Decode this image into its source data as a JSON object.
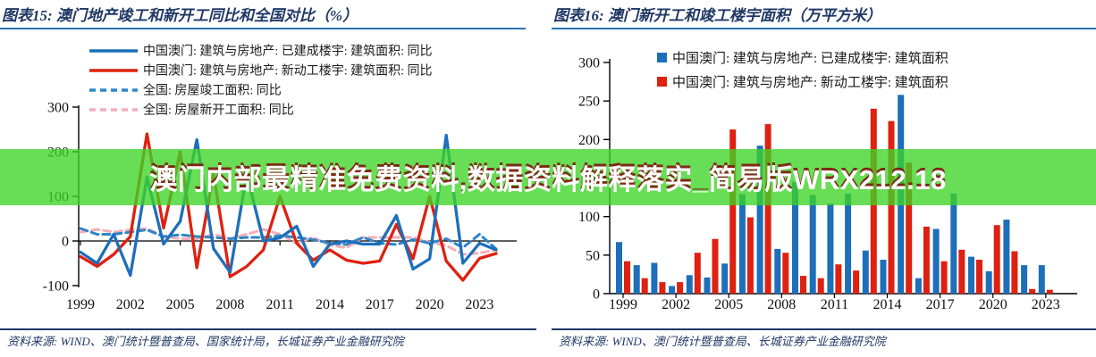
{
  "banner": {
    "text": "澳门内部最精准免费资料,数据资料解释落实_简易版WRX212.18",
    "bg_color": "#3ED326",
    "text_color": "#ffffff",
    "shadow_color": "#801A0E"
  },
  "accent_colors": {
    "title_navy": "#1F3864",
    "title_underline_blue": "#2E75B6",
    "macau_blue": "#1D6FBA",
    "macau_red": "#DE2110",
    "national_blue_dashed": "#2E86C8",
    "national_pink_dashed": "#F2AEB9"
  },
  "chart_data": [
    {
      "type": "line",
      "title": "图表15:  澳门地产竣工和新开工同比和全国对比（%）",
      "x": [
        1999,
        2000,
        2001,
        2002,
        2003,
        2004,
        2005,
        2006,
        2007,
        2008,
        2009,
        2010,
        2011,
        2012,
        2013,
        2014,
        2015,
        2016,
        2017,
        2018,
        2019,
        2020,
        2021,
        2022,
        2023,
        2024
      ],
      "xticks": [
        1999,
        2002,
        2005,
        2008,
        2011,
        2014,
        2017,
        2020,
        2023
      ],
      "yticks": [
        300,
        200,
        100,
        0,
        -100
      ],
      "ylim": [
        -100,
        300
      ],
      "grid": false,
      "legend_position": "top-left",
      "series": [
        {
          "name": "中国澳门: 建筑与房地产: 已建成楼宇: 建筑面积: 同比",
          "color": "#1D6FBA",
          "style": "solid",
          "values": [
            -25,
            -50,
            15,
            -77,
            143,
            -7,
            44,
            227,
            -17,
            -70,
            150,
            0,
            7,
            33,
            -57,
            -7,
            0,
            -7,
            -7,
            57,
            -63,
            -40,
            237,
            -50,
            -5,
            -20
          ]
        },
        {
          "name": "中国澳门: 建筑与房地产: 新动工楼宇: 建筑面积: 同比",
          "color": "#DE2110",
          "style": "solid",
          "values": [
            -35,
            -57,
            -30,
            10,
            240,
            29,
            200,
            -60,
            150,
            -80,
            -57,
            -20,
            100,
            -5,
            -43,
            -20,
            -43,
            -50,
            -45,
            37,
            -40,
            100,
            -45,
            -88,
            -39,
            -28
          ]
        },
        {
          "name": "全国: 房屋竣工面积: 同比",
          "color": "#2E86C8",
          "style": "dashed",
          "values": [
            28,
            15,
            15,
            20,
            25,
            10,
            14,
            10,
            8,
            5,
            8,
            8,
            12,
            8,
            3,
            -5,
            -8,
            8,
            -5,
            -8,
            3,
            -5,
            5,
            -15,
            15,
            -18
          ]
        },
        {
          "name": "全国: 房屋新开工面积: 同比",
          "color": "#F2AEB9",
          "style": "dashed",
          "values": [
            20,
            26,
            20,
            25,
            28,
            10,
            5,
            5,
            15,
            5,
            15,
            26,
            15,
            -5,
            8,
            -10,
            -15,
            8,
            8,
            8,
            8,
            -3,
            -10,
            -30,
            -27,
            -20
          ]
        }
      ],
      "source": "资料来源:  WIND、澳门统计暨普查局、国家统计局，长城证券产业金融研究院"
    },
    {
      "type": "bar",
      "title": "图表16:  澳门新开工和竣工楼宇面积（万平方米）",
      "categories": [
        1999,
        2000,
        2001,
        2002,
        2003,
        2004,
        2005,
        2006,
        2007,
        2008,
        2009,
        2010,
        2011,
        2012,
        2013,
        2014,
        2015,
        2016,
        2017,
        2018,
        2019,
        2020,
        2021,
        2022,
        2023
      ],
      "xticks": [
        1999,
        2002,
        2005,
        2008,
        2011,
        2014,
        2017,
        2020,
        2023
      ],
      "yticks": [
        0,
        50,
        100,
        150,
        200,
        250,
        300
      ],
      "ylim": [
        0,
        300
      ],
      "grid": false,
      "legend_position": "top",
      "series": [
        {
          "name": "中国澳门: 建筑与房地产: 已建成楼宇: 建筑面积",
          "color": "#1D6FBA",
          "values": [
            67,
            37,
            40,
            10,
            24,
            21,
            39,
            129,
            192,
            58,
            145,
            128,
            117,
            130,
            56,
            44,
            258,
            20,
            84,
            130,
            48,
            29,
            96,
            37,
            37
          ]
        },
        {
          "name": "中国澳门: 建筑与房地产: 新动工楼宇: 建筑面积",
          "color": "#DE2110",
          "values": [
            42,
            20,
            15,
            15,
            53,
            71,
            213,
            99,
            220,
            53,
            23,
            20,
            38,
            30,
            240,
            224,
            170,
            87,
            42,
            57,
            44,
            89,
            55,
            6,
            5
          ]
        }
      ],
      "source": "资料来源:  WIND、澳门统计暨普查局、长城证券产业金融研究院"
    }
  ]
}
